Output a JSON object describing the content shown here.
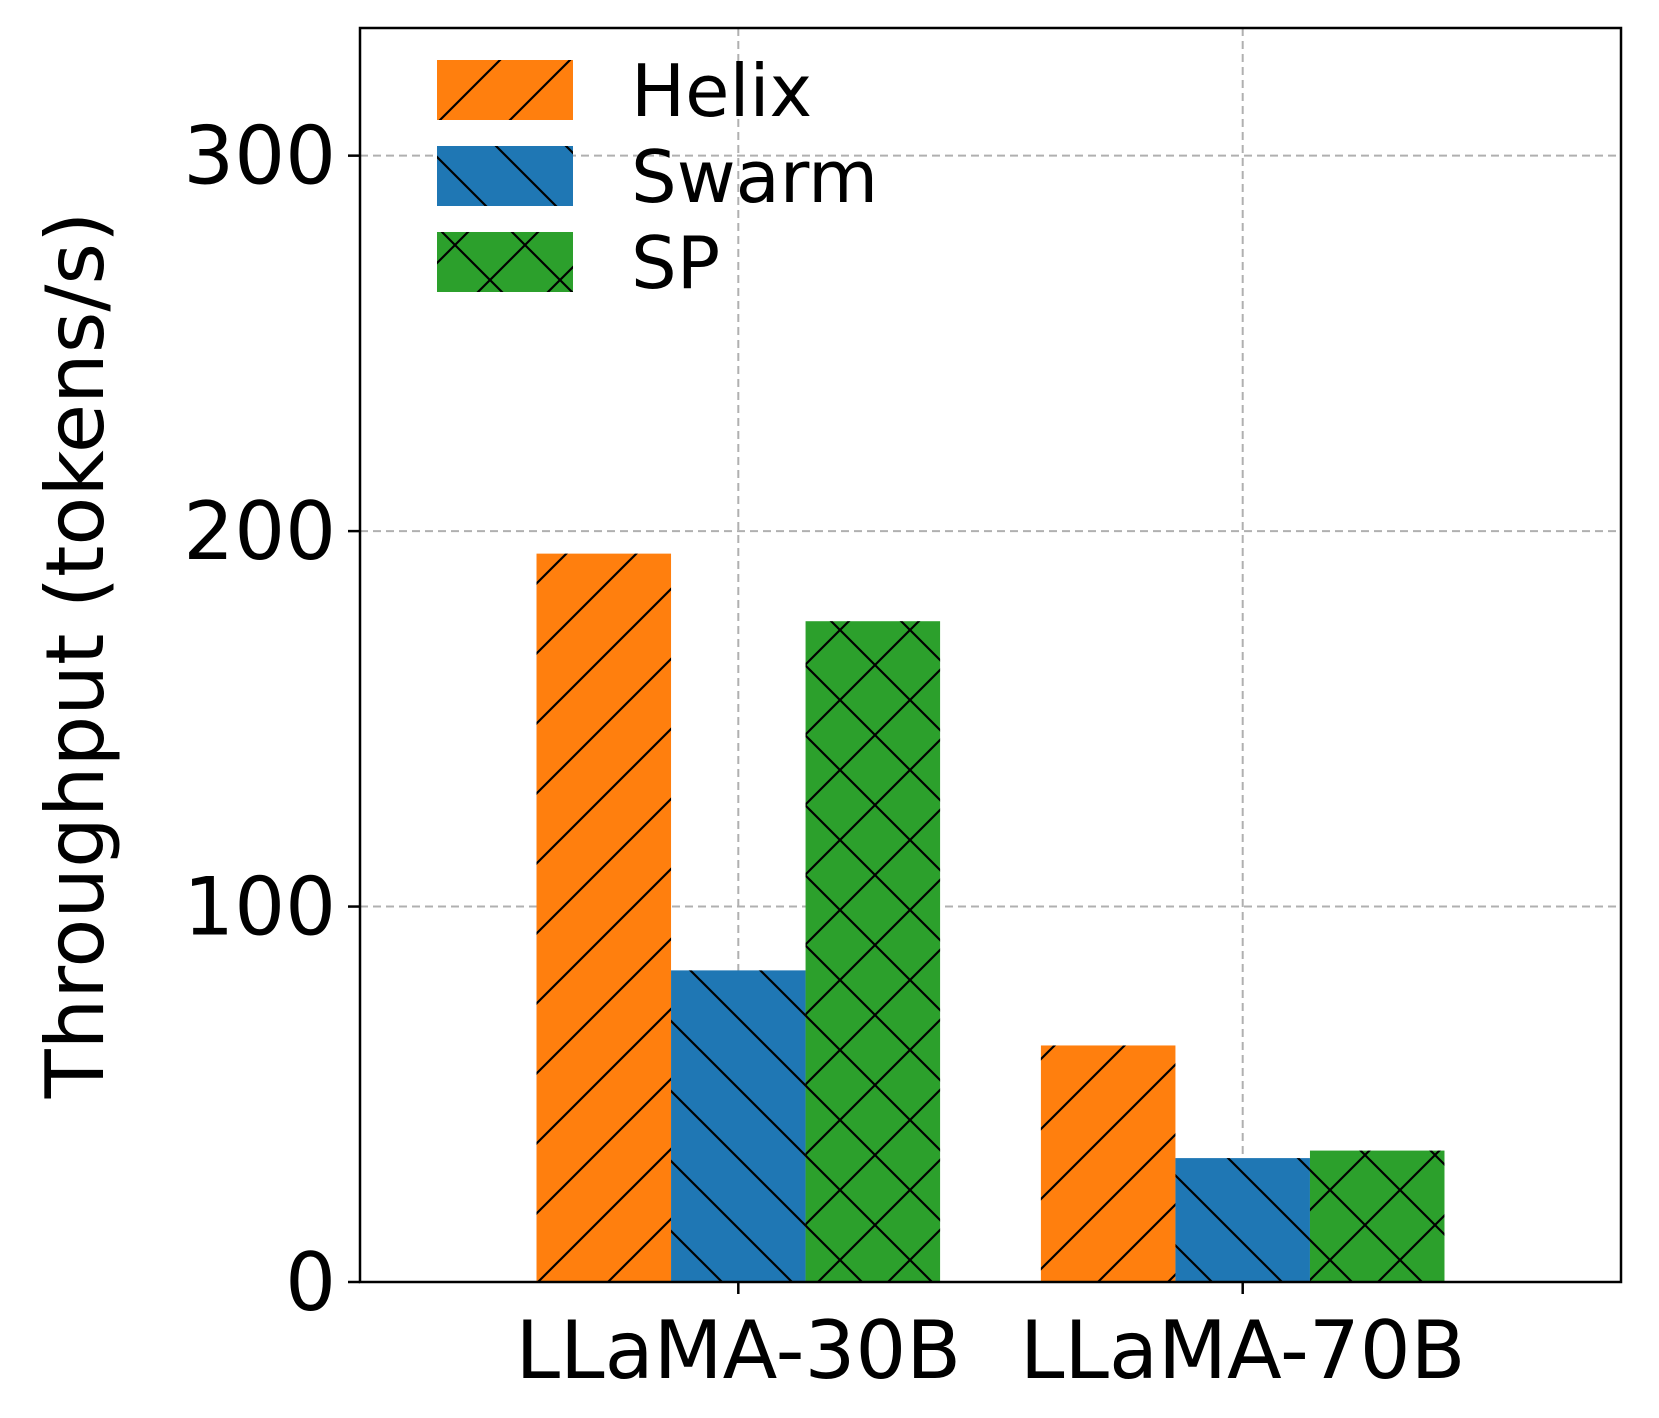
{
  "chart_data": {
    "type": "bar",
    "title": "",
    "xlabel": "",
    "ylabel": "Throughput (tokens/s)",
    "categories": [
      "LLaMA-30B",
      "LLaMA-70B"
    ],
    "series": [
      {
        "name": "Helix",
        "values": [
          194,
          63
        ],
        "color": "#ff7f0e",
        "hatch": "forward-diagonal"
      },
      {
        "name": "Swarm",
        "values": [
          83,
          33
        ],
        "color": "#1f77b4",
        "hatch": "back-diagonal"
      },
      {
        "name": "SP",
        "values": [
          176,
          35
        ],
        "color": "#2ca02c",
        "hatch": "crosshatch"
      }
    ],
    "ylim": [
      0,
      334
    ],
    "yticks": [
      "0",
      "100",
      "200",
      "300"
    ],
    "grid": true,
    "legend_position": "top-left"
  }
}
